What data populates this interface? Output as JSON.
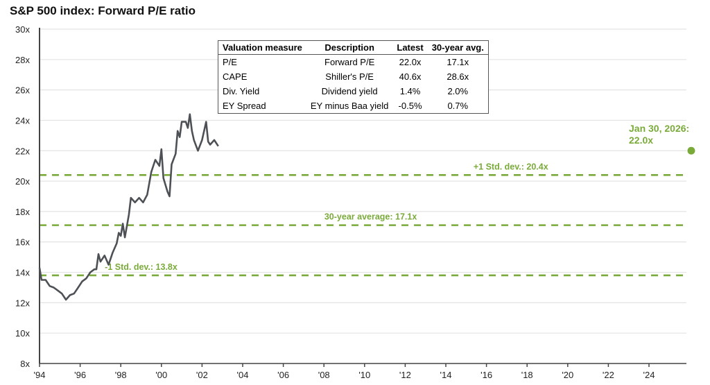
{
  "title": "S&P 500 index: Forward P/E ratio",
  "valuation_table": {
    "headers": [
      "Valuation measure",
      "Description",
      "Latest",
      "30-year avg."
    ],
    "rows": [
      [
        "P/E",
        "Forward P/E",
        "22.0x",
        "17.1x"
      ],
      [
        "CAPE",
        "Shiller's P/E",
        "40.6x",
        "28.6x"
      ],
      [
        "Div. Yield",
        "Dividend yield",
        "1.4%",
        "2.0%"
      ],
      [
        "EY Spread",
        "EY minus Baa yield",
        "-0.5%",
        "0.7%"
      ]
    ]
  },
  "colors": {
    "line": "#4d5055",
    "reference": "#7aab3a",
    "gridline": "#e3e3e3",
    "axis": "#444444"
  },
  "chart_data": {
    "type": "line",
    "title": "S&P 500 index: Forward P/E ratio",
    "xlabel": "",
    "ylabel": "",
    "xlim": [
      1994,
      2026.1
    ],
    "ylim": [
      8,
      30
    ],
    "grid": true,
    "y_ticks": [
      8,
      10,
      12,
      14,
      16,
      18,
      20,
      22,
      24,
      26,
      28,
      30
    ],
    "y_tick_labels": [
      "8x",
      "10x",
      "12x",
      "14x",
      "16x",
      "18x",
      "20x",
      "22x",
      "24x",
      "26x",
      "28x",
      "30x"
    ],
    "x_ticks": [
      1994,
      1996,
      1998,
      2000,
      2002,
      2004,
      2006,
      2008,
      2010,
      2012,
      2014,
      2016,
      2018,
      2020,
      2022,
      2024
    ],
    "x_tick_labels": [
      "'94",
      "'96",
      "'98",
      "'00",
      "'02",
      "'04",
      "'06",
      "'08",
      "'10",
      "'12",
      "'14",
      "'16",
      "'18",
      "'20",
      "'22",
      "'24"
    ],
    "reference_lines": [
      {
        "name": "+1 Std. dev.",
        "value": 20.4,
        "label": "+1 Std. dev.: 20.4x",
        "label_x": 2017.2
      },
      {
        "name": "30-year average",
        "value": 17.1,
        "label": "30-year average: 17.1x",
        "label_x": 2010.3
      },
      {
        "name": "-1 Std. dev.",
        "value": 13.8,
        "label": "-1 Std. dev.: 13.8x",
        "label_x": 1999.0
      }
    ],
    "annotation": {
      "text": [
        "Jan 30, 2026:",
        "22.0x"
      ],
      "x": 2026.08,
      "y": 22.0
    },
    "series": [
      {
        "name": "Forward P/E",
        "points": [
          [
            1994.0,
            14.3
          ],
          [
            1994.1,
            13.5
          ],
          [
            1994.3,
            13.5
          ],
          [
            1994.5,
            13.1
          ],
          [
            1994.7,
            13.0
          ],
          [
            1994.9,
            12.8
          ],
          [
            1995.1,
            12.6
          ],
          [
            1995.3,
            12.2
          ],
          [
            1995.5,
            12.5
          ],
          [
            1995.7,
            12.6
          ],
          [
            1995.9,
            13.0
          ],
          [
            1996.1,
            13.4
          ],
          [
            1996.3,
            13.6
          ],
          [
            1996.5,
            14.0
          ],
          [
            1996.7,
            14.2
          ],
          [
            1996.8,
            14.2
          ],
          [
            1996.9,
            15.2
          ],
          [
            1997.0,
            14.7
          ],
          [
            1997.2,
            15.1
          ],
          [
            1997.4,
            14.5
          ],
          [
            1997.6,
            15.3
          ],
          [
            1997.8,
            15.9
          ],
          [
            1997.9,
            16.6
          ],
          [
            1998.0,
            16.4
          ],
          [
            1998.1,
            17.2
          ],
          [
            1998.2,
            16.3
          ],
          [
            1998.4,
            17.8
          ],
          [
            1998.5,
            18.9
          ],
          [
            1998.7,
            18.6
          ],
          [
            1998.9,
            18.9
          ],
          [
            1999.1,
            18.6
          ],
          [
            1999.3,
            19.1
          ],
          [
            1999.5,
            20.6
          ],
          [
            1999.7,
            21.4
          ],
          [
            1999.9,
            21.0
          ],
          [
            2000.0,
            22.1
          ],
          [
            2000.1,
            20.2
          ],
          [
            2000.3,
            19.3
          ],
          [
            2000.4,
            19.0
          ],
          [
            2000.5,
            21.1
          ],
          [
            2000.7,
            21.8
          ],
          [
            2000.8,
            23.3
          ],
          [
            2000.9,
            22.9
          ],
          [
            2001.0,
            23.9
          ],
          [
            2001.2,
            23.9
          ],
          [
            2001.3,
            23.5
          ],
          [
            2001.4,
            24.4
          ],
          [
            2001.5,
            23.3
          ],
          [
            2001.6,
            22.7
          ],
          [
            2001.8,
            22.0
          ],
          [
            2002.0,
            22.7
          ],
          [
            2002.2,
            23.9
          ],
          [
            2002.3,
            22.6
          ],
          [
            2002.4,
            22.4
          ],
          [
            2002.6,
            22.7
          ],
          [
            2002.8,
            22.3
          ]
        ]
      }
    ]
  }
}
